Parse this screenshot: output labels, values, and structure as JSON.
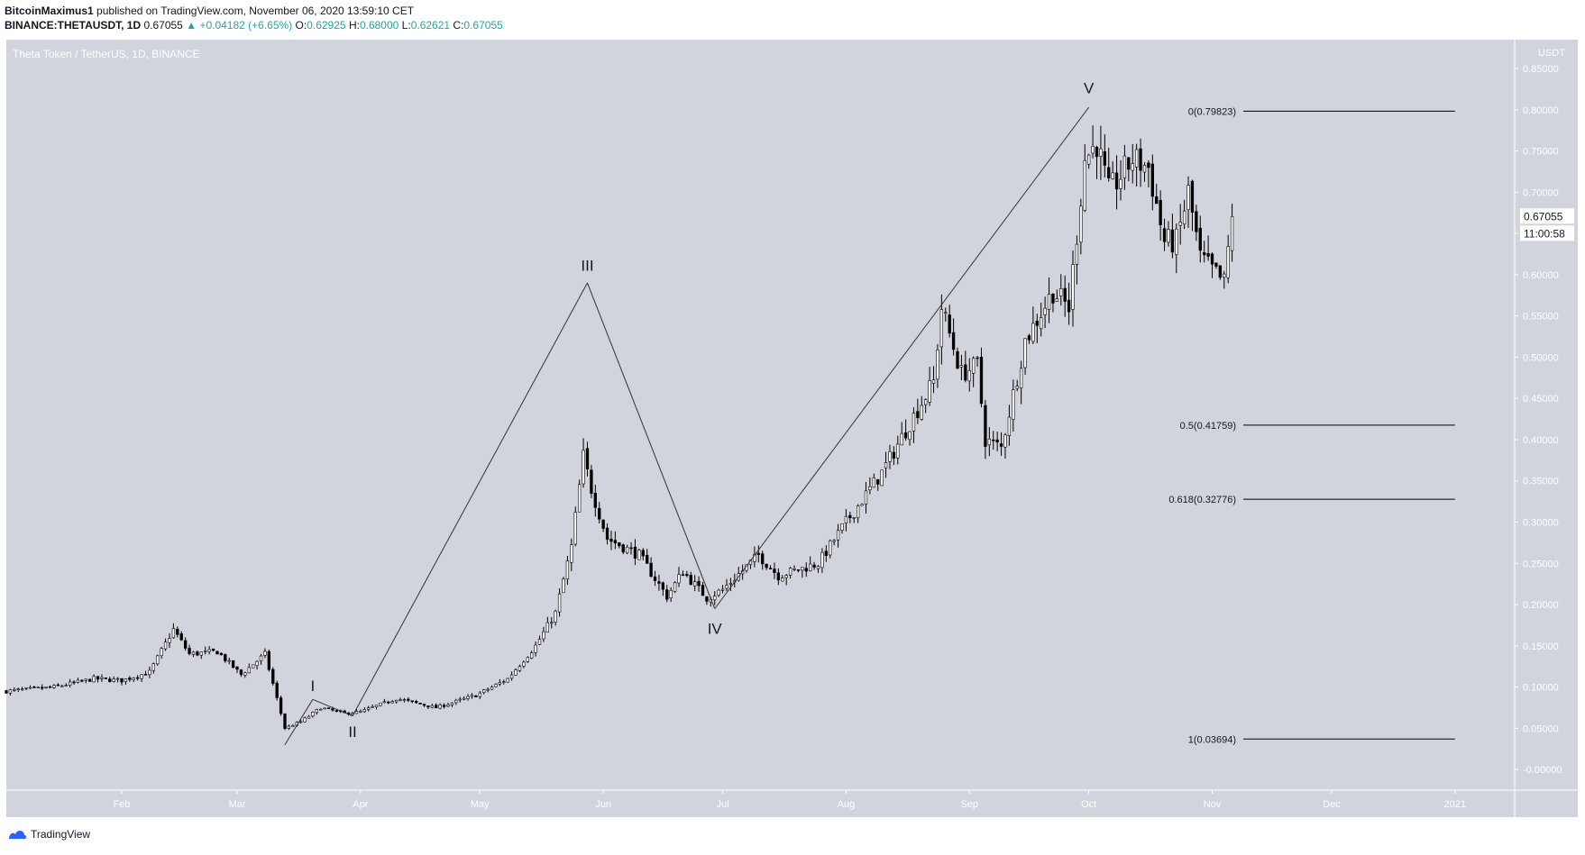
{
  "header": {
    "author": "BitcoinMaximus1",
    "published_text": "published on TradingView.com, November 06, 2020 13:59:10 CET",
    "symbol": "BINANCE:THETAUSDT, 1D",
    "last_price": "0.67055",
    "change": "+0.04182 (+6.65%)",
    "open_label": "O:",
    "open": "0.62925",
    "high_label": "H:",
    "high": "0.68000",
    "low_label": "L:",
    "low": "0.62621",
    "close_label": "C:",
    "close": "0.67055"
  },
  "colors": {
    "plot_bg": "#d1d4dc",
    "up": "#ffffff",
    "down": "#000000",
    "ink": "#131722",
    "price_ok": "#26a69a",
    "logo_blue": "#2962ff"
  },
  "chart_data": {
    "type": "candlestick",
    "title": "Theta Token / TetherUS, 1D, BINANCE",
    "currency_label": "USDT",
    "y_range": [
      -0.025,
      0.885
    ],
    "y_ticks": [
      "0.85000",
      "0.80000",
      "0.75000",
      "0.70000",
      "0.65000",
      "0.60000",
      "0.55000",
      "0.50000",
      "0.45000",
      "0.40000",
      "0.35000",
      "0.30000",
      "0.25000",
      "0.20000",
      "0.15000",
      "0.10000",
      "0.05000",
      "-0.00000"
    ],
    "x_range": [
      "2020-01-03",
      "2021-01-16"
    ],
    "x_ticks": [
      {
        "label": "Feb",
        "date": "2020-02-01"
      },
      {
        "label": "Mar",
        "date": "2020-03-01"
      },
      {
        "label": "Apr",
        "date": "2020-04-01"
      },
      {
        "label": "May",
        "date": "2020-05-01"
      },
      {
        "label": "Jun",
        "date": "2020-06-01"
      },
      {
        "label": "Jul",
        "date": "2020-07-01"
      },
      {
        "label": "Aug",
        "date": "2020-08-01"
      },
      {
        "label": "Sep",
        "date": "2020-09-01"
      },
      {
        "label": "Oct",
        "date": "2020-10-01"
      },
      {
        "label": "Nov",
        "date": "2020-11-01"
      },
      {
        "label": "Dec",
        "date": "2020-12-01"
      },
      {
        "label": "2021",
        "date": "2021-01-01"
      }
    ],
    "last_price_label": "0.67055",
    "countdown_label": "11:00:58",
    "price_path": [
      [
        "2020-01-03",
        0.095
      ],
      [
        "2020-01-15",
        0.1
      ],
      [
        "2020-01-25",
        0.11
      ],
      [
        "2020-02-01",
        0.108
      ],
      [
        "2020-02-08",
        0.118
      ],
      [
        "2020-02-14",
        0.17
      ],
      [
        "2020-02-18",
        0.14
      ],
      [
        "2020-02-25",
        0.143
      ],
      [
        "2020-03-02",
        0.115
      ],
      [
        "2020-03-08",
        0.14
      ],
      [
        "2020-03-13",
        0.05
      ],
      [
        "2020-03-17",
        0.058
      ],
      [
        "2020-03-22",
        0.075
      ],
      [
        "2020-03-28",
        0.068
      ],
      [
        "2020-04-01",
        0.07
      ],
      [
        "2020-04-10",
        0.086
      ],
      [
        "2020-04-20",
        0.075
      ],
      [
        "2020-04-30",
        0.09
      ],
      [
        "2020-05-08",
        0.11
      ],
      [
        "2020-05-15",
        0.15
      ],
      [
        "2020-05-20",
        0.19
      ],
      [
        "2020-05-24",
        0.27
      ],
      [
        "2020-05-27",
        0.38
      ],
      [
        "2020-05-29",
        0.34
      ],
      [
        "2020-06-02",
        0.28
      ],
      [
        "2020-06-10",
        0.26
      ],
      [
        "2020-06-17",
        0.21
      ],
      [
        "2020-06-21",
        0.24
      ],
      [
        "2020-06-27",
        0.208
      ],
      [
        "2020-07-01",
        0.218
      ],
      [
        "2020-07-10",
        0.26
      ],
      [
        "2020-07-15",
        0.235
      ],
      [
        "2020-07-25",
        0.25
      ],
      [
        "2020-08-01",
        0.3
      ],
      [
        "2020-08-10",
        0.36
      ],
      [
        "2020-08-17",
        0.42
      ],
      [
        "2020-08-23",
        0.47
      ],
      [
        "2020-08-25",
        0.56
      ],
      [
        "2020-08-30",
        0.48
      ],
      [
        "2020-09-03",
        0.49
      ],
      [
        "2020-09-05",
        0.4
      ],
      [
        "2020-09-09",
        0.39
      ],
      [
        "2020-09-15",
        0.52
      ],
      [
        "2020-09-22",
        0.58
      ],
      [
        "2020-09-26",
        0.56
      ],
      [
        "2020-09-30",
        0.74
      ],
      [
        "2020-10-03",
        0.76
      ],
      [
        "2020-10-06",
        0.7
      ],
      [
        "2020-10-12",
        0.74
      ],
      [
        "2020-10-16",
        0.73
      ],
      [
        "2020-10-20",
        0.64
      ],
      [
        "2020-10-23",
        0.64
      ],
      [
        "2020-10-26",
        0.7
      ],
      [
        "2020-10-29",
        0.62
      ],
      [
        "2020-11-02",
        0.6
      ],
      [
        "2020-11-04",
        0.59
      ],
      [
        "2020-11-06",
        0.67
      ]
    ],
    "wave_lines": [
      {
        "from": [
          "2020-03-13",
          0.03
        ],
        "to": [
          "2020-03-20",
          0.085
        ]
      },
      {
        "from": [
          "2020-03-20",
          0.085
        ],
        "to": [
          "2020-03-30",
          0.065
        ]
      },
      {
        "from": [
          "2020-03-30",
          0.065
        ],
        "to": [
          "2020-05-28",
          0.59
        ]
      },
      {
        "from": [
          "2020-05-28",
          0.59
        ],
        "to": [
          "2020-06-29",
          0.195
        ]
      },
      {
        "from": [
          "2020-06-29",
          0.195
        ],
        "to": [
          "2020-10-01",
          0.803
        ]
      }
    ],
    "wave_labels": [
      {
        "text": "I",
        "date": "2020-03-20",
        "value": 0.095,
        "position": "above"
      },
      {
        "text": "II",
        "date": "2020-03-30",
        "value": 0.055,
        "position": "below"
      },
      {
        "text": "III",
        "date": "2020-05-28",
        "value": 0.605,
        "position": "above"
      },
      {
        "text": "IV",
        "date": "2020-06-29",
        "value": 0.18,
        "position": "below"
      },
      {
        "text": "V",
        "date": "2020-10-01",
        "value": 0.82,
        "position": "above"
      }
    ],
    "fib_levels": [
      {
        "label": "0(0.79823)",
        "value": 0.79823
      },
      {
        "label": "0.5(0.41759)",
        "value": 0.41759
      },
      {
        "label": "0.618(0.32776)",
        "value": 0.32776
      },
      {
        "label": "1(0.03694)",
        "value": 0.03694
      }
    ],
    "fib_line_start": "2020-11-07",
    "fib_line_end": "2021-01-01"
  },
  "footer": {
    "logo_text": "TradingView"
  }
}
